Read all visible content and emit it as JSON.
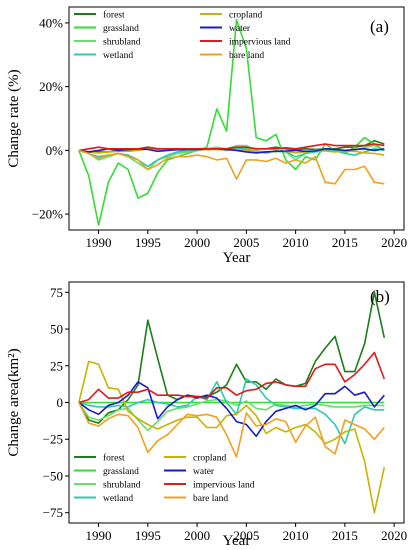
{
  "chart_data": [
    {
      "type": "line",
      "panel_label": "(a)",
      "xlabel": "Year",
      "ylabel": "Change rate (%)",
      "xlim": [
        1987,
        2021
      ],
      "ylim": [
        -25,
        45
      ],
      "xticks": [
        1990,
        1995,
        2000,
        2005,
        2010,
        2015,
        2020
      ],
      "xtick_labels": [
        "1990",
        "1995",
        "2000",
        "2005",
        "2010",
        "2015",
        "2020"
      ],
      "yticks": [
        -20,
        0,
        20,
        40
      ],
      "ytick_labels": [
        "−20%",
        "0%",
        "20%",
        "40%"
      ],
      "grid": false,
      "legend_placement": "top-left",
      "x": [
        1988,
        1989,
        1990,
        1991,
        1992,
        1993,
        1994,
        1995,
        1996,
        1997,
        1998,
        1999,
        2000,
        2001,
        2002,
        2003,
        2004,
        2005,
        2006,
        2007,
        2008,
        2009,
        2010,
        2011,
        2012,
        2013,
        2014,
        2015,
        2016,
        2017,
        2018,
        2019
      ],
      "series": [
        {
          "name": "forest",
          "color": "#1a7f1a",
          "values": [
            0,
            -0.5,
            -0.5,
            -0.5,
            0,
            0,
            0.3,
            1,
            0.5,
            0.3,
            0.2,
            0.3,
            0.5,
            0.5,
            0.5,
            0.5,
            1,
            1,
            0.5,
            0.5,
            1,
            0.5,
            0.3,
            0.5,
            0.3,
            0.5,
            0.5,
            1,
            1,
            1.5,
            3,
            2
          ]
        },
        {
          "name": "grassland",
          "color": "#33dd33",
          "values": [
            0,
            -8,
            -23.5,
            -10,
            -4,
            -6,
            -15,
            -13.5,
            -7,
            -3,
            -2,
            -1,
            0,
            1,
            13,
            6,
            41,
            32,
            4,
            3,
            5,
            -3,
            -6,
            -2,
            -3,
            2,
            0,
            -1,
            1,
            4,
            2,
            0
          ]
        },
        {
          "name": "shrubland",
          "color": "#66e066",
          "values": [
            0,
            -1,
            -3,
            -2,
            -1,
            -2,
            -4,
            -6,
            -3,
            -2,
            -1,
            -0.5,
            0,
            0.5,
            1,
            0.5,
            1.5,
            1.5,
            0,
            -1,
            0,
            -0.5,
            -3,
            -1,
            0,
            0.5,
            0,
            -0.5,
            0,
            1,
            1.5,
            0
          ]
        },
        {
          "name": "wetland",
          "color": "#30c8b0",
          "values": [
            0,
            -1,
            -2,
            -1.5,
            -1,
            -1.5,
            -3,
            -5,
            -3,
            -1.5,
            -0.5,
            0,
            0,
            0.3,
            0.5,
            0,
            0.5,
            0.5,
            -0.3,
            -0.5,
            -0.3,
            -0.5,
            -2,
            -1,
            -0.5,
            0,
            0,
            -1,
            -1.5,
            -0.5,
            0.5,
            0
          ]
        },
        {
          "name": "cropland",
          "color": "#c8b400",
          "values": [
            0,
            -0.5,
            -0.8,
            -0.5,
            -0.3,
            -0.3,
            0,
            0.5,
            0.3,
            0.2,
            0.5,
            0.3,
            0.3,
            0.2,
            0.3,
            0.2,
            0.2,
            0,
            -0.3,
            -0.5,
            -0.3,
            -0.3,
            -0.8,
            -0.5,
            -0.2,
            -0.2,
            -0.5,
            -0.3,
            -0.3,
            -0.8,
            -1,
            -1.5
          ]
        },
        {
          "name": "water",
          "color": "#1a1acc",
          "values": [
            0,
            -0.5,
            0,
            0.5,
            0,
            0.3,
            0.5,
            0.3,
            -0.3,
            0,
            0.2,
            0.3,
            0.3,
            0.5,
            0.5,
            0.3,
            0,
            -0.5,
            -0.8,
            -0.5,
            -0.3,
            -0.2,
            0,
            -0.3,
            -0.2,
            0.5,
            0.3,
            0,
            0.3,
            0.5,
            0,
            0.5
          ]
        },
        {
          "name": "impervious land",
          "color": "#e01a1a",
          "values": [
            0,
            0.5,
            1,
            0.5,
            0.5,
            0.5,
            0.5,
            1,
            0.5,
            0.5,
            0.5,
            0.5,
            0.5,
            0.5,
            0.5,
            0.5,
            1,
            1,
            0.5,
            0.5,
            0.5,
            0.8,
            0.5,
            1,
            1.5,
            2,
            1.5,
            1.5,
            1.5,
            1.5,
            2,
            1.5
          ]
        },
        {
          "name": "bare land",
          "color": "#f2a020",
          "values": [
            0,
            -1,
            -2.5,
            -1.5,
            -1,
            -2,
            -3,
            -6,
            -4.5,
            -2.5,
            -2,
            -2,
            -1.5,
            -2,
            -3,
            -2.5,
            -9,
            -3,
            -3,
            -3.5,
            -2.5,
            -4,
            -3,
            -4,
            -2,
            -10,
            -10.5,
            -6,
            -6,
            -5,
            -10,
            -10.5
          ]
        }
      ]
    },
    {
      "type": "line",
      "panel_label": "(b)",
      "xlabel": "Year",
      "ylabel": "Change area(km²)",
      "xlim": [
        1987,
        2021
      ],
      "ylim": [
        -82,
        82
      ],
      "xticks": [
        1990,
        1995,
        2000,
        2005,
        2010,
        2015,
        2020
      ],
      "xtick_labels": [
        "1990",
        "1995",
        "2000",
        "2005",
        "2010",
        "2015",
        "2020"
      ],
      "yticks": [
        -75,
        -50,
        -25,
        0,
        25,
        50,
        75
      ],
      "ytick_labels": [
        "−75",
        "−50",
        "−25",
        "0",
        "25",
        "50",
        "75"
      ],
      "grid": false,
      "legend_placement": "bottom-left",
      "x": [
        1988,
        1989,
        1990,
        1991,
        1992,
        1993,
        1994,
        1995,
        1996,
        1997,
        1998,
        1999,
        2000,
        2001,
        2002,
        2003,
        2004,
        2005,
        2006,
        2007,
        2008,
        2009,
        2010,
        2011,
        2012,
        2013,
        2014,
        2015,
        2016,
        2017,
        2018,
        2019
      ],
      "series": [
        {
          "name": "forest",
          "color": "#1a7f1a",
          "values": [
            0,
            -12,
            -14,
            -7,
            -5,
            2,
            12,
            56,
            30,
            5,
            2,
            5,
            4,
            4,
            7,
            12,
            26,
            14,
            14,
            9,
            16,
            12,
            11,
            13,
            28,
            37,
            45,
            21,
            21,
            40,
            75,
            44
          ]
        },
        {
          "name": "grassland",
          "color": "#33dd33",
          "values": [
            0,
            0,
            0,
            0,
            0,
            0,
            0,
            0,
            0,
            0,
            0,
            0,
            0,
            0,
            0,
            0,
            0,
            0,
            0,
            0,
            0,
            0,
            0,
            0,
            0,
            0,
            0,
            0,
            0,
            0,
            0,
            0
          ]
        },
        {
          "name": "shrubland",
          "color": "#66e066",
          "values": [
            0,
            -10,
            -12,
            -9,
            -5,
            -4,
            -12,
            -19,
            -13,
            -6,
            -4,
            -3,
            -1,
            1,
            2,
            1,
            -2,
            1,
            -4,
            -5,
            -1,
            -2,
            -3,
            -2,
            -1,
            -2,
            -3,
            -3,
            -3,
            -2,
            -2,
            -2
          ]
        },
        {
          "name": "wetland",
          "color": "#30c8b0",
          "values": [
            0,
            -2,
            -3,
            -3,
            -2,
            -3,
            0,
            2,
            0,
            -1,
            -3,
            -2,
            4,
            2,
            14,
            0,
            -8,
            16,
            12,
            3,
            -2,
            -3,
            -4,
            -4,
            -4,
            -8,
            -15,
            -28,
            -8,
            -3,
            -5,
            -5
          ]
        },
        {
          "name": "cropland",
          "color": "#c8b400",
          "values": [
            0,
            28,
            26,
            10,
            9,
            -6,
            -11,
            -15,
            -18,
            -15,
            -12,
            -10,
            -10,
            -17,
            -17,
            -9,
            -8,
            -2,
            -9,
            -21,
            -17,
            -20,
            -17,
            -15,
            -20,
            -28,
            -25,
            -20,
            -18,
            -40,
            -75,
            -44
          ]
        },
        {
          "name": "water",
          "color": "#1a1acc",
          "values": [
            0,
            -5,
            -8,
            -2,
            0,
            5,
            14,
            10,
            -11,
            -3,
            2,
            5,
            3,
            5,
            3,
            -4,
            -13,
            -15,
            -23,
            -13,
            -6,
            -4,
            -2,
            -5,
            -2,
            6,
            6,
            11,
            5,
            7,
            -3,
            5
          ]
        },
        {
          "name": "impervious land",
          "color": "#e01a1a",
          "values": [
            0,
            2,
            9,
            3,
            3,
            7,
            7,
            9,
            5,
            5,
            5,
            4,
            4,
            3,
            10,
            10,
            5,
            8,
            9,
            13,
            14,
            12,
            11,
            11,
            23,
            26,
            26,
            14,
            19,
            26,
            34,
            16
          ]
        },
        {
          "name": "bare land",
          "color": "#f2a020",
          "values": [
            0,
            -14,
            -16,
            -11,
            -8,
            -9,
            -17,
            -34,
            -26,
            -22,
            -15,
            -8,
            -9,
            -8,
            -10,
            -22,
            -37,
            -7,
            -16,
            -15,
            -11,
            -13,
            -27,
            -16,
            -10,
            -30,
            -35,
            -12,
            -15,
            -18,
            -25,
            -17
          ]
        }
      ]
    }
  ]
}
